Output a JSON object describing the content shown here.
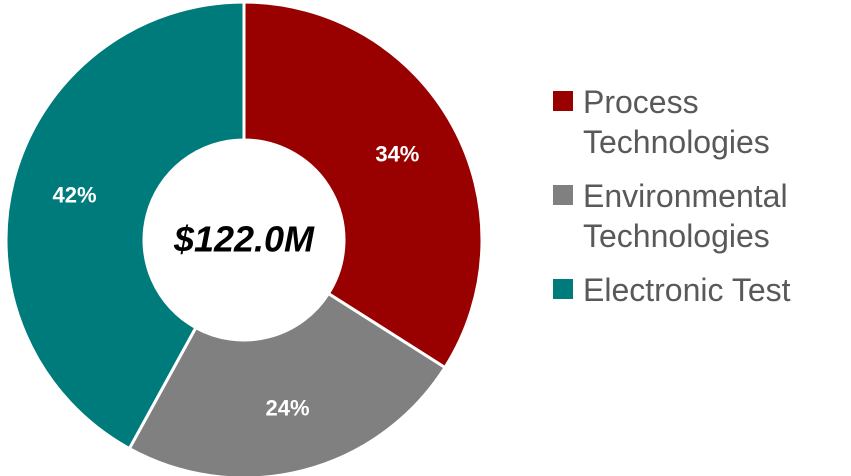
{
  "chart_data": {
    "type": "donut",
    "center_label": "$122.0M",
    "categories": [
      "Process Technologies",
      "Environmental Technologies",
      "Electronic Test"
    ],
    "values": [
      34,
      24,
      42
    ],
    "value_labels": [
      "34%",
      "24%",
      "42%"
    ],
    "colors": [
      "#990000",
      "#808080",
      "#007b7b"
    ],
    "legend": "right"
  }
}
